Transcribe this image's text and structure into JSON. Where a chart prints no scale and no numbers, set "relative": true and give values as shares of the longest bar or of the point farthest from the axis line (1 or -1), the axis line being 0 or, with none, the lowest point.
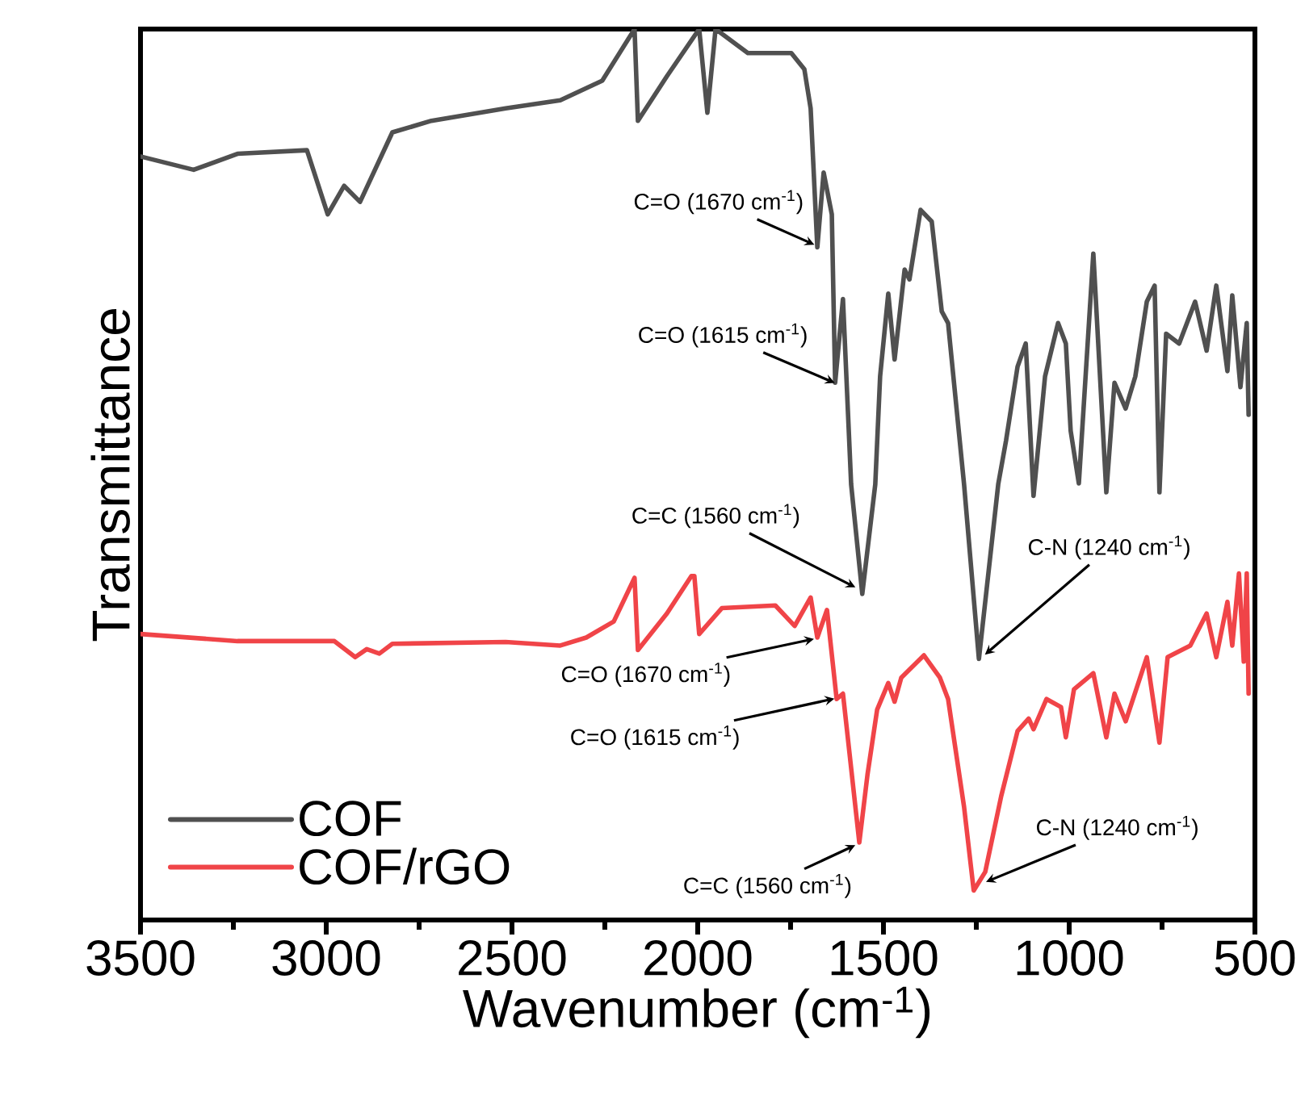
{
  "chart_data": {
    "type": "line",
    "relative": true,
    "xlabel": "Wavenumber (cm$^{-1}$)",
    "ylabel": "Transmittance",
    "xlim": [
      3500,
      500
    ],
    "xticks": [
      3500,
      3000,
      2500,
      2000,
      1500,
      1000,
      500
    ],
    "tick_labels": "x",
    "legend": "bottom left",
    "series": [
      {
        "name": "COF",
        "color": "#505050",
        "x": [
          3500,
          3357,
          3239,
          3052,
          2996,
          2952,
          2909,
          2822,
          2717,
          2517,
          2370,
          2257,
          2170,
          2161,
          2083,
          1996,
          1974,
          1952,
          1865,
          1748,
          1713,
          1696,
          1678,
          1661,
          1639,
          1630,
          1609,
          1587,
          1557,
          1522,
          1509,
          1487,
          1470,
          1443,
          1430,
          1400,
          1370,
          1343,
          1326,
          1283,
          1243,
          1191,
          1170,
          1139,
          1117,
          1096,
          1065,
          1030,
          1009,
          996,
          974,
          935,
          900,
          878,
          848,
          822,
          791,
          770,
          757,
          739,
          704,
          661,
          630,
          604,
          574,
          561,
          539,
          522,
          517
        ],
        "values": [
          0.857,
          0.842,
          0.86,
          0.864,
          0.792,
          0.824,
          0.806,
          0.884,
          0.897,
          0.911,
          0.92,
          0.942,
          1,
          0.897,
          0.947,
          1,
          0.906,
          1,
          0.973,
          0.973,
          0.955,
          0.911,
          0.755,
          0.839,
          0.792,
          0.603,
          0.697,
          0.489,
          0.366,
          0.489,
          0.61,
          0.703,
          0.629,
          0.73,
          0.719,
          0.797,
          0.784,
          0.683,
          0.67,
          0.489,
          0.293,
          0.489,
          0.538,
          0.621,
          0.647,
          0.476,
          0.61,
          0.67,
          0.647,
          0.549,
          0.49,
          0.748,
          0.48,
          0.603,
          0.574,
          0.61,
          0.694,
          0.712,
          0.48,
          0.658,
          0.647,
          0.694,
          0.639,
          0.712,
          0.616,
          0.701,
          0.598,
          0.67,
          0.567
        ]
      },
      {
        "name": "COF/rGO",
        "color": "#f04448",
        "x": [
          3500,
          3239,
          2978,
          2922,
          2891,
          2857,
          2822,
          2517,
          2370,
          2300,
          2226,
          2170,
          2161,
          2083,
          2017,
          2009,
          1996,
          1935,
          1791,
          1739,
          1696,
          1678,
          1652,
          1626,
          1609,
          1565,
          1543,
          1517,
          1487,
          1470,
          1452,
          1391,
          1348,
          1326,
          1283,
          1257,
          1226,
          1183,
          1139,
          1109,
          1096,
          1061,
          1022,
          1009,
          987,
          935,
          900,
          878,
          848,
          791,
          757,
          735,
          674,
          630,
          604,
          574,
          561,
          543,
          530,
          522,
          517
        ],
        "values": [
          0.321,
          0.313,
          0.313,
          0.295,
          0.304,
          0.299,
          0.31,
          0.312,
          0.308,
          0.317,
          0.335,
          0.384,
          0.303,
          0.344,
          0.386,
          0.386,
          0.321,
          0.35,
          0.353,
          0.33,
          0.362,
          0.317,
          0.348,
          0.248,
          0.254,
          0.087,
          0.163,
          0.236,
          0.266,
          0.245,
          0.272,
          0.297,
          0.272,
          0.248,
          0.127,
          0.033,
          0.054,
          0.139,
          0.212,
          0.226,
          0.214,
          0.248,
          0.239,
          0.205,
          0.259,
          0.277,
          0.205,
          0.254,
          0.223,
          0.295,
          0.199,
          0.295,
          0.308,
          0.344,
          0.295,
          0.357,
          0.308,
          0.389,
          0.29,
          0.389,
          0.254
        ]
      }
    ],
    "annotations": [
      {
        "text": "C=O (1670 cm$^{-1}$)",
        "x": 1670,
        "y": 0.755
      },
      {
        "text": "C=O (1615 cm$^{-1}$)",
        "x": 1615,
        "y": 0.6
      },
      {
        "text": "C=C (1560 cm$^{-1}$)",
        "x": 1560,
        "y": 0.37
      },
      {
        "text": "C-N (1240 cm$^{-1}$)",
        "x": 1240,
        "y": 0.293
      },
      {
        "text": "C=O (1670 cm$^{-1}$)",
        "x": 1670,
        "y": 0.317
      },
      {
        "text": "C=O (1615 cm$^{-1}$)",
        "x": 1615,
        "y": 0.25
      },
      {
        "text": "C=C (1560 cm$^{-1}$)",
        "x": 1560,
        "y": 0.087
      },
      {
        "text": "C-N (1240 cm$^{-1}$)",
        "x": 1240,
        "y": 0.04
      }
    ]
  }
}
